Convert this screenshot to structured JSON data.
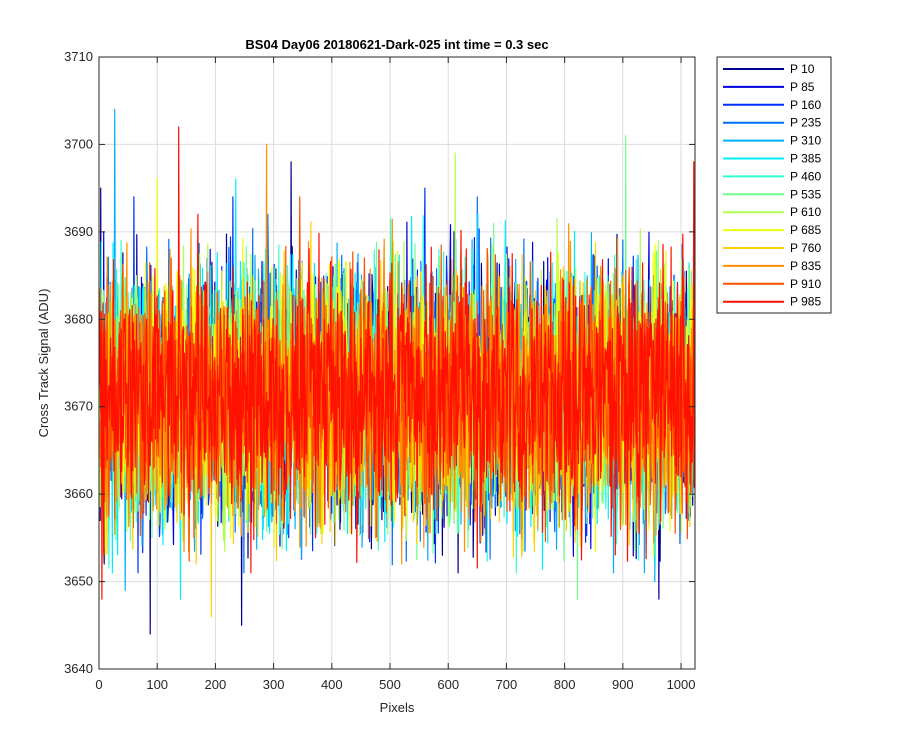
{
  "chart_data": {
    "type": "line",
    "title": "BS04 Day06 20180621-Dark-025 int time = 0.3 sec",
    "xlabel": "Pixels",
    "ylabel": "Cross Track Signal (ADU)",
    "xlim": [
      0,
      1024
    ],
    "ylim": [
      3640,
      3710
    ],
    "xticks": [
      0,
      100,
      200,
      300,
      400,
      500,
      600,
      700,
      800,
      900,
      1000
    ],
    "yticks": [
      3640,
      3650,
      3660,
      3670,
      3680,
      3690,
      3700,
      3710
    ],
    "grid": true,
    "legend_position": "outside-right-top",
    "noise_summary": {
      "mean": 3671,
      "std": 7
    },
    "series": [
      {
        "name": "P 10",
        "color": "#00008F",
        "peaks": [
          {
            "x": 3,
            "y": 3695
          },
          {
            "x": 88,
            "y": 3644
          },
          {
            "x": 245,
            "y": 3645
          },
          {
            "x": 330,
            "y": 3698
          },
          {
            "x": 962,
            "y": 3648
          }
        ]
      },
      {
        "name": "P 85",
        "color": "#0000DF",
        "peaks": [
          {
            "x": 8,
            "y": 3690
          },
          {
            "x": 402,
            "y": 3686
          }
        ]
      },
      {
        "name": "P 160",
        "color": "#0030FF",
        "peaks": [
          {
            "x": 60,
            "y": 3694
          },
          {
            "x": 230,
            "y": 3694
          },
          {
            "x": 560,
            "y": 3695
          }
        ]
      },
      {
        "name": "P 235",
        "color": "#0070FF",
        "peaks": [
          {
            "x": 290,
            "y": 3692
          },
          {
            "x": 650,
            "y": 3694
          }
        ]
      },
      {
        "name": "P 310",
        "color": "#00B0FF",
        "peaks": [
          {
            "x": 27,
            "y": 3704
          },
          {
            "x": 45,
            "y": 3649
          },
          {
            "x": 955,
            "y": 3650
          }
        ]
      },
      {
        "name": "P 385",
        "color": "#00EFFF",
        "peaks": [
          {
            "x": 235,
            "y": 3696
          },
          {
            "x": 140,
            "y": 3648
          }
        ]
      },
      {
        "name": "P 460",
        "color": "#30FFCF",
        "peaks": [
          {
            "x": 905,
            "y": 3692
          }
        ]
      },
      {
        "name": "P 535",
        "color": "#70FF8F",
        "peaks": [
          {
            "x": 905,
            "y": 3701
          },
          {
            "x": 822,
            "y": 3648
          }
        ]
      },
      {
        "name": "P 610",
        "color": "#B0FF50",
        "peaks": [
          {
            "x": 612,
            "y": 3699
          }
        ]
      },
      {
        "name": "P 685",
        "color": "#EFFF10",
        "peaks": [
          {
            "x": 100,
            "y": 3696
          }
        ]
      },
      {
        "name": "P 760",
        "color": "#FFCF00",
        "peaks": [
          {
            "x": 193,
            "y": 3646
          }
        ]
      },
      {
        "name": "P 835",
        "color": "#FF8F00",
        "peaks": [
          {
            "x": 288,
            "y": 3700
          }
        ]
      },
      {
        "name": "P 910",
        "color": "#FF5000",
        "peaks": [
          {
            "x": 345,
            "y": 3694
          }
        ]
      },
      {
        "name": "P 985",
        "color": "#FF1000",
        "peaks": [
          {
            "x": 137,
            "y": 3702
          },
          {
            "x": 5,
            "y": 3648
          },
          {
            "x": 1022,
            "y": 3698
          }
        ]
      }
    ]
  }
}
